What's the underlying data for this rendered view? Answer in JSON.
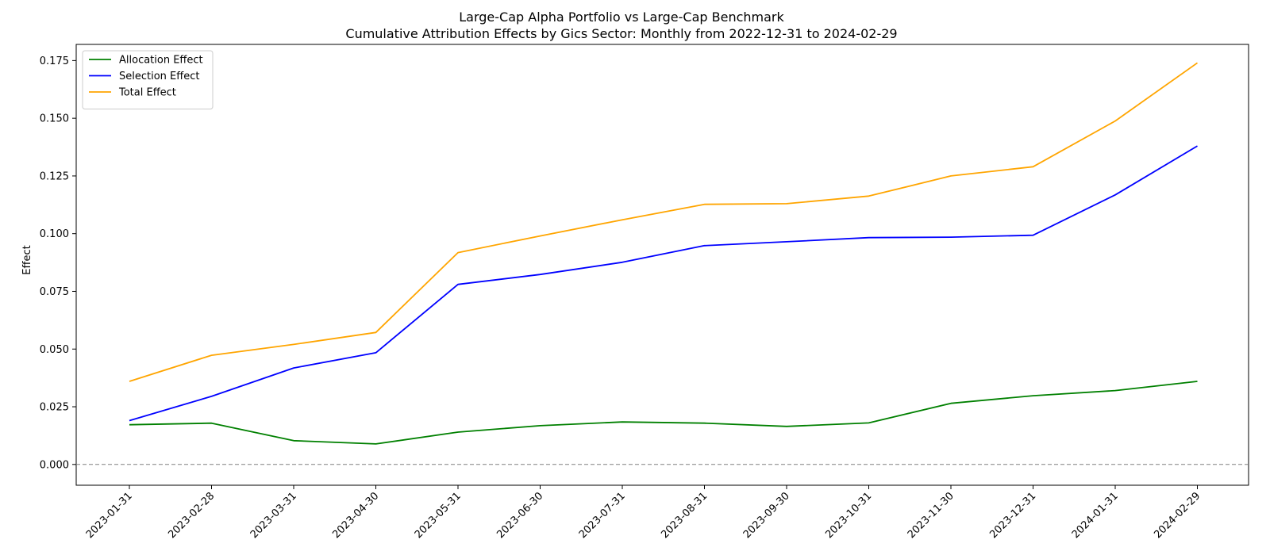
{
  "chart_data": {
    "type": "line",
    "title": "Large-Cap Alpha Portfolio vs Large-Cap Benchmark",
    "subtitle": "Cumulative Attribution Effects by Gics Sector: Monthly from 2022-12-31 to 2024-02-29",
    "xlabel": "",
    "ylabel": "Effect",
    "x": [
      "2023-01-31",
      "2023-02-28",
      "2023-03-31",
      "2023-04-30",
      "2023-05-31",
      "2023-06-30",
      "2023-07-31",
      "2023-08-31",
      "2023-09-30",
      "2023-10-31",
      "2023-11-30",
      "2023-12-31",
      "2024-01-31",
      "2024-02-29"
    ],
    "yticks": [
      "0.000",
      "0.025",
      "0.050",
      "0.075",
      "0.100",
      "0.125",
      "0.150",
      "0.175"
    ],
    "ylim": [
      -0.009,
      0.182
    ],
    "grid": false,
    "zero_line": {
      "y": 0,
      "style": "dashed",
      "color": "#808080"
    },
    "legend_position": "top-left",
    "series": [
      {
        "name": "Allocation Effect",
        "color": "#008000",
        "values": [
          0.0172,
          0.0179,
          0.0103,
          0.0089,
          0.014,
          0.0168,
          0.0184,
          0.0179,
          0.0165,
          0.018,
          0.0265,
          0.0298,
          0.032,
          0.036
        ]
      },
      {
        "name": "Selection Effect",
        "color": "#0000ff",
        "values": [
          0.019,
          0.0295,
          0.0418,
          0.0484,
          0.078,
          0.0823,
          0.0876,
          0.0948,
          0.0965,
          0.0983,
          0.0985,
          0.0993,
          0.1168,
          0.138
        ]
      },
      {
        "name": "Total Effect",
        "color": "#ffa500",
        "values": [
          0.036,
          0.0473,
          0.052,
          0.0572,
          0.0918,
          0.099,
          0.106,
          0.1127,
          0.113,
          0.1163,
          0.125,
          0.129,
          0.1488,
          0.174
        ]
      }
    ]
  }
}
